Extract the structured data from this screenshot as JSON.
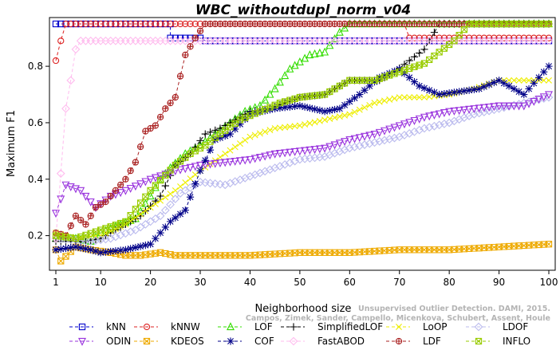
{
  "chart_data": {
    "type": "line",
    "title": "WBC_withoutdupl_norm_v04",
    "xlabel": "Neighborhood size",
    "ylabel": "Maximum F1",
    "xlim": [
      1,
      100
    ],
    "ylim": [
      0.1,
      0.95
    ],
    "xticks": [
      1,
      10,
      20,
      30,
      40,
      50,
      60,
      70,
      80,
      90,
      100
    ],
    "yticks": [
      0.2,
      0.4,
      0.6,
      0.8
    ],
    "grid": false,
    "legend_position": "bottom",
    "watermark": [
      "Campos, Zimek, Sander, Campello, Micenkova, Schubert, Assent, Houle",
      "Unsupervised Outlier Detection. DAMI, 2015."
    ],
    "series": [
      {
        "name": "kNN",
        "color": "#0000cc",
        "marker": "square",
        "points": [
          [
            1,
            0.95
          ],
          [
            24,
            0.95
          ],
          [
            24,
            0.9
          ],
          [
            30,
            0.9
          ],
          [
            31,
            0.89
          ],
          [
            100,
            0.89
          ]
        ]
      },
      {
        "name": "kNNW",
        "color": "#dd2222",
        "marker": "circle",
        "points": [
          [
            1,
            0.82
          ],
          [
            2,
            0.89
          ],
          [
            3,
            0.95
          ],
          [
            71,
            0.95
          ],
          [
            72,
            0.9
          ],
          [
            100,
            0.9
          ]
        ]
      },
      {
        "name": "LOF",
        "color": "#33dd00",
        "marker": "triangle-up",
        "points": [
          [
            1,
            0.19
          ],
          [
            5,
            0.19
          ],
          [
            8,
            0.18
          ],
          [
            10,
            0.21
          ],
          [
            14,
            0.24
          ],
          [
            17,
            0.26
          ],
          [
            20,
            0.34
          ],
          [
            22,
            0.4
          ],
          [
            24,
            0.44
          ],
          [
            27,
            0.49
          ],
          [
            30,
            0.52
          ],
          [
            33,
            0.56
          ],
          [
            36,
            0.6
          ],
          [
            39,
            0.64
          ],
          [
            42,
            0.66
          ],
          [
            45,
            0.72
          ],
          [
            48,
            0.79
          ],
          [
            52,
            0.84
          ],
          [
            55,
            0.85
          ],
          [
            58,
            0.92
          ],
          [
            60,
            0.95
          ],
          [
            100,
            0.95
          ]
        ]
      },
      {
        "name": "SimplifiedLOF",
        "color": "#000000",
        "marker": "plus",
        "points": [
          [
            1,
            0.18
          ],
          [
            7,
            0.18
          ],
          [
            10,
            0.19
          ],
          [
            14,
            0.23
          ],
          [
            18,
            0.27
          ],
          [
            22,
            0.34
          ],
          [
            25,
            0.45
          ],
          [
            28,
            0.49
          ],
          [
            31,
            0.56
          ],
          [
            34,
            0.58
          ],
          [
            37,
            0.61
          ],
          [
            40,
            0.64
          ],
          [
            44,
            0.65
          ],
          [
            47,
            0.67
          ],
          [
            50,
            0.69
          ],
          [
            55,
            0.7
          ],
          [
            60,
            0.75
          ],
          [
            66,
            0.75
          ],
          [
            69,
            0.78
          ],
          [
            72,
            0.82
          ],
          [
            75,
            0.86
          ],
          [
            78,
            0.95
          ],
          [
            100,
            0.95
          ]
        ]
      },
      {
        "name": "LoOP",
        "color": "#eeee00",
        "marker": "x",
        "points": [
          [
            1,
            0.21
          ],
          [
            5,
            0.19
          ],
          [
            10,
            0.2
          ],
          [
            15,
            0.24
          ],
          [
            20,
            0.3
          ],
          [
            25,
            0.36
          ],
          [
            30,
            0.43
          ],
          [
            35,
            0.49
          ],
          [
            40,
            0.55
          ],
          [
            45,
            0.58
          ],
          [
            50,
            0.59
          ],
          [
            55,
            0.61
          ],
          [
            60,
            0.63
          ],
          [
            65,
            0.67
          ],
          [
            70,
            0.69
          ],
          [
            75,
            0.69
          ],
          [
            80,
            0.7
          ],
          [
            85,
            0.72
          ],
          [
            90,
            0.75
          ],
          [
            95,
            0.75
          ],
          [
            100,
            0.75
          ]
        ]
      },
      {
        "name": "LDOF",
        "color": "#bbbbee",
        "marker": "diamond",
        "points": [
          [
            1,
            0.19
          ],
          [
            8,
            0.18
          ],
          [
            12,
            0.19
          ],
          [
            17,
            0.22
          ],
          [
            22,
            0.27
          ],
          [
            26,
            0.35
          ],
          [
            30,
            0.39
          ],
          [
            35,
            0.38
          ],
          [
            40,
            0.41
          ],
          [
            45,
            0.44
          ],
          [
            50,
            0.47
          ],
          [
            55,
            0.48
          ],
          [
            60,
            0.51
          ],
          [
            65,
            0.53
          ],
          [
            70,
            0.55
          ],
          [
            75,
            0.58
          ],
          [
            80,
            0.6
          ],
          [
            85,
            0.63
          ],
          [
            90,
            0.65
          ],
          [
            95,
            0.67
          ],
          [
            100,
            0.69
          ]
        ]
      },
      {
        "name": "ODIN",
        "color": "#9933dd",
        "marker": "triangle-down",
        "points": [
          [
            1,
            0.28
          ],
          [
            3,
            0.38
          ],
          [
            6,
            0.36
          ],
          [
            9,
            0.3
          ],
          [
            12,
            0.34
          ],
          [
            15,
            0.36
          ],
          [
            20,
            0.4
          ],
          [
            25,
            0.43
          ],
          [
            30,
            0.45
          ],
          [
            35,
            0.46
          ],
          [
            40,
            0.47
          ],
          [
            45,
            0.49
          ],
          [
            50,
            0.5
          ],
          [
            55,
            0.51
          ],
          [
            60,
            0.54
          ],
          [
            65,
            0.56
          ],
          [
            70,
            0.59
          ],
          [
            75,
            0.62
          ],
          [
            80,
            0.64
          ],
          [
            85,
            0.65
          ],
          [
            90,
            0.66
          ],
          [
            95,
            0.66
          ],
          [
            100,
            0.7
          ]
        ]
      },
      {
        "name": "KDEOS",
        "color": "#eeaa00",
        "marker": "square-x",
        "points": [
          [
            1,
            0.15
          ],
          [
            2,
            0.11
          ],
          [
            5,
            0.16
          ],
          [
            8,
            0.15
          ],
          [
            12,
            0.14
          ],
          [
            15,
            0.13
          ],
          [
            18,
            0.13
          ],
          [
            22,
            0.14
          ],
          [
            25,
            0.13
          ],
          [
            30,
            0.13
          ],
          [
            40,
            0.13
          ],
          [
            50,
            0.14
          ],
          [
            60,
            0.14
          ],
          [
            70,
            0.15
          ],
          [
            80,
            0.15
          ],
          [
            90,
            0.16
          ],
          [
            100,
            0.17
          ]
        ]
      },
      {
        "name": "COF",
        "color": "#000088",
        "marker": "asterisk",
        "points": [
          [
            1,
            0.15
          ],
          [
            5,
            0.16
          ],
          [
            8,
            0.15
          ],
          [
            10,
            0.14
          ],
          [
            15,
            0.15
          ],
          [
            20,
            0.17
          ],
          [
            24,
            0.25
          ],
          [
            27,
            0.29
          ],
          [
            30,
            0.43
          ],
          [
            33,
            0.54
          ],
          [
            36,
            0.56
          ],
          [
            40,
            0.63
          ],
          [
            45,
            0.65
          ],
          [
            50,
            0.66
          ],
          [
            55,
            0.64
          ],
          [
            58,
            0.65
          ],
          [
            62,
            0.7
          ],
          [
            66,
            0.76
          ],
          [
            70,
            0.79
          ],
          [
            74,
            0.73
          ],
          [
            78,
            0.7
          ],
          [
            82,
            0.71
          ],
          [
            86,
            0.72
          ],
          [
            90,
            0.75
          ],
          [
            95,
            0.7
          ],
          [
            100,
            0.8
          ]
        ]
      },
      {
        "name": "FastABOD",
        "color": "#ffbbee",
        "marker": "diamond",
        "points": [
          [
            1,
            0.19
          ],
          [
            2,
            0.42
          ],
          [
            3,
            0.65
          ],
          [
            4,
            0.75
          ],
          [
            5,
            0.86
          ],
          [
            6,
            0.89
          ],
          [
            8,
            0.89
          ],
          [
            10,
            0.89
          ],
          [
            20,
            0.89
          ],
          [
            30,
            0.89
          ],
          [
            50,
            0.89
          ],
          [
            100,
            0.89
          ]
        ]
      },
      {
        "name": "LDF",
        "color": "#aa2222",
        "marker": "circle-plus",
        "points": [
          [
            1,
            0.21
          ],
          [
            3,
            0.2
          ],
          [
            5,
            0.27
          ],
          [
            7,
            0.24
          ],
          [
            9,
            0.3
          ],
          [
            11,
            0.32
          ],
          [
            13,
            0.36
          ],
          [
            15,
            0.4
          ],
          [
            17,
            0.46
          ],
          [
            19,
            0.57
          ],
          [
            21,
            0.59
          ],
          [
            23,
            0.65
          ],
          [
            25,
            0.69
          ],
          [
            27,
            0.84
          ],
          [
            29,
            0.9
          ],
          [
            31,
            0.95
          ],
          [
            100,
            0.95
          ]
        ]
      },
      {
        "name": "INFLO",
        "color": "#99cc00",
        "marker": "square-x",
        "points": [
          [
            1,
            0.2
          ],
          [
            5,
            0.19
          ],
          [
            10,
            0.22
          ],
          [
            15,
            0.25
          ],
          [
            20,
            0.36
          ],
          [
            25,
            0.45
          ],
          [
            28,
            0.49
          ],
          [
            31,
            0.52
          ],
          [
            34,
            0.56
          ],
          [
            38,
            0.61
          ],
          [
            42,
            0.64
          ],
          [
            46,
            0.67
          ],
          [
            50,
            0.69
          ],
          [
            55,
            0.7
          ],
          [
            60,
            0.75
          ],
          [
            65,
            0.75
          ],
          [
            70,
            0.78
          ],
          [
            75,
            0.81
          ],
          [
            78,
            0.85
          ],
          [
            81,
            0.89
          ],
          [
            84,
            0.95
          ],
          [
            100,
            0.95
          ]
        ]
      }
    ]
  }
}
